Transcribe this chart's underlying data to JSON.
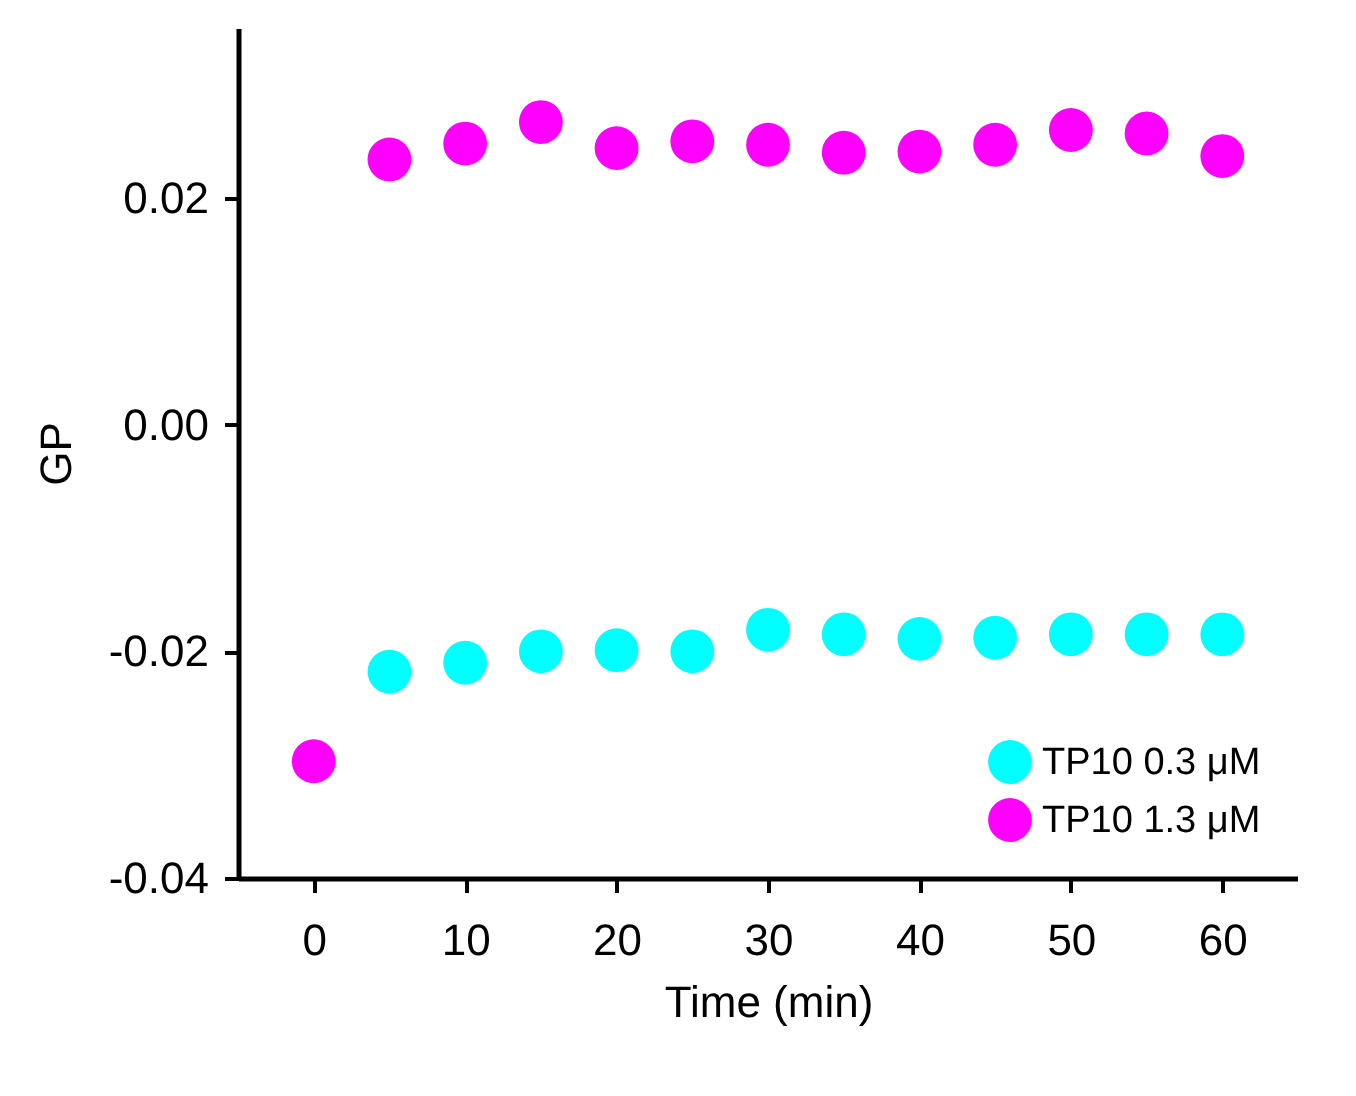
{
  "chart_data": {
    "type": "scatter",
    "xlabel": "Time (min)",
    "ylabel": "GP",
    "x": [
      0,
      5,
      10,
      15,
      20,
      25,
      30,
      35,
      40,
      45,
      50,
      55,
      60
    ],
    "series": [
      {
        "name": "TP10 0.3 μM",
        "color": "#00ffff",
        "values": [
          null,
          -0.0218,
          -0.021,
          -0.02,
          -0.0199,
          -0.02,
          -0.0181,
          -0.0185,
          -0.0189,
          -0.0188,
          -0.0185,
          -0.0185,
          -0.0185
        ]
      },
      {
        "name": "TP10 1.3 μM",
        "color": "#ff00ff",
        "values": [
          -0.0297,
          0.0234,
          0.0248,
          0.0267,
          0.0244,
          0.025,
          0.0247,
          0.024,
          0.0241,
          0.0247,
          0.026,
          0.0257,
          0.0237
        ]
      }
    ],
    "xlim": [
      -5,
      65
    ],
    "xticks": [
      0,
      10,
      20,
      30,
      40,
      50,
      60
    ],
    "ylim": [
      -0.04,
      0.035
    ],
    "yticks": [
      {
        "value": -0.04,
        "label": "-0.04"
      },
      {
        "value": -0.02,
        "label": "-0.02"
      },
      {
        "value": 0,
        "label": "0.00"
      },
      {
        "value": 0.02,
        "label": "0.02"
      }
    ],
    "grid": false,
    "legend": "bottom right",
    "marker": "circle"
  }
}
